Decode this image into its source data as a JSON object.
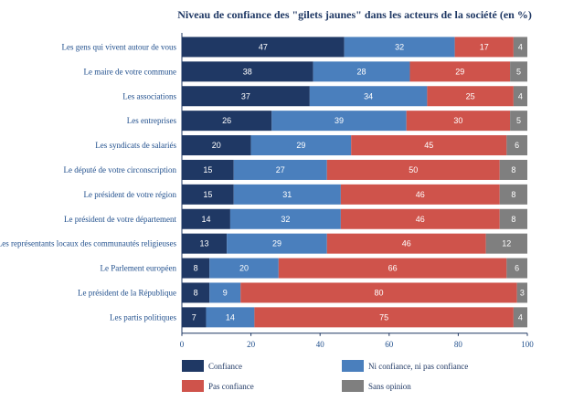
{
  "chart_data": {
    "type": "bar",
    "orientation": "horizontal",
    "stacked": true,
    "title": "Niveau de confiance des \"gilets jaunes\" dans les acteurs de la société (en %)",
    "xlabel": "",
    "ylabel": "",
    "xlim": [
      0,
      100
    ],
    "xticks": [
      "0",
      "20",
      "40",
      "60",
      "80",
      "100"
    ],
    "categories": [
      "Les gens qui vivent autour de vous",
      "Le maire de votre commune",
      "Les associations",
      "Les entreprises",
      "Les syndicats de salariés",
      "Le député de votre circonscription",
      "Le président de votre région",
      "Le président de votre département",
      "Les représentants locaux des communautés religieuses",
      "Le Parlement européen",
      "Le président de la République",
      "Les partis politiques"
    ],
    "series": [
      {
        "name": "Confiance",
        "color": "#1f3864",
        "label_color": "#ffffff",
        "values": [
          47,
          38,
          37,
          26,
          20,
          15,
          15,
          14,
          13,
          8,
          8,
          7
        ]
      },
      {
        "name": "Ni confiance, ni pas confiance",
        "color": "#4a7fbd",
        "label_color": "#ffffff",
        "values": [
          32,
          28,
          34,
          39,
          29,
          27,
          31,
          32,
          29,
          20,
          9,
          14
        ]
      },
      {
        "name": "Pas confiance",
        "color": "#cf534b",
        "label_color": "#ffffff",
        "values": [
          17,
          29,
          25,
          30,
          45,
          50,
          46,
          46,
          46,
          66,
          80,
          75
        ]
      },
      {
        "name": "Sans opinion",
        "color": "#7f7f7f",
        "label_color": "#ffffff",
        "values": [
          4,
          5,
          4,
          5,
          6,
          8,
          8,
          8,
          12,
          6,
          3,
          4
        ]
      }
    ],
    "legend_position": "bottom",
    "grid": false
  }
}
